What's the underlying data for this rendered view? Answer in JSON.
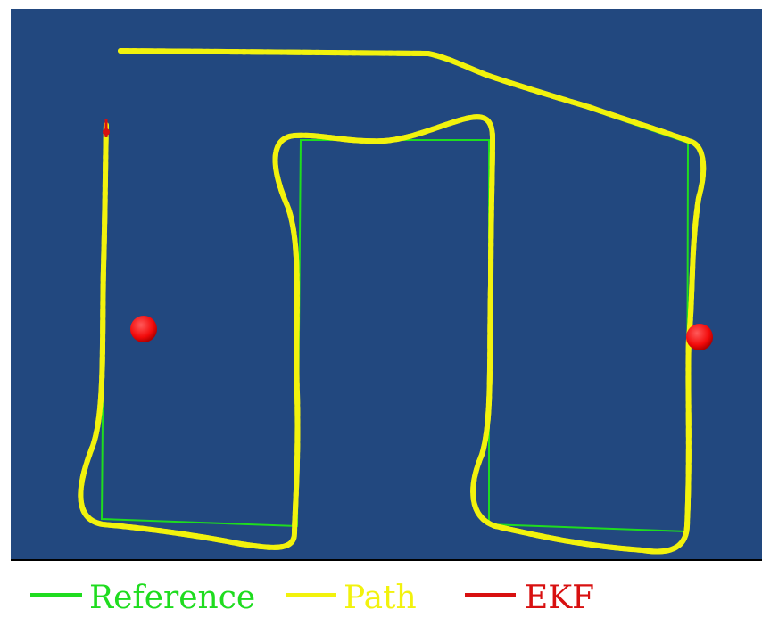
{
  "colors": {
    "background": "#22487f",
    "reference": "#1fdc1f",
    "path": "#f2f20d",
    "ekf": "#d81010",
    "landmark": "#f20a0a"
  },
  "legend": [
    {
      "key": "reference",
      "label": "Reference",
      "color": "#1fdc1f"
    },
    {
      "key": "path",
      "label": "Path",
      "color": "#f2f20d"
    },
    {
      "key": "ekf",
      "label": "EKF",
      "color": "#d81010"
    }
  ],
  "landmarks": [
    {
      "name": "landmark-left"
    },
    {
      "name": "landmark-right"
    }
  ]
}
